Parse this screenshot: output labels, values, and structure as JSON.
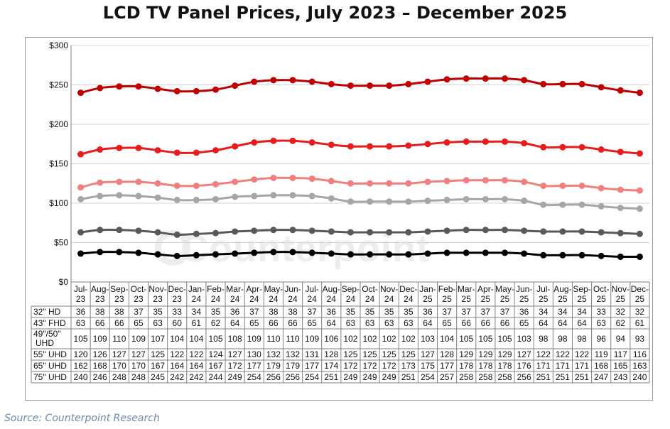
{
  "source_text": "Source: Counterpoint Research",
  "watermark_text": "Counterpoint",
  "chart_data": {
    "type": "line",
    "title": "LCD TV Panel Prices, July 2023 – December 2025",
    "xlabel": "",
    "ylabel": "",
    "ylim": [
      0,
      300
    ],
    "yticks": [
      "$0",
      "$50",
      "$100",
      "$150",
      "$200",
      "$250",
      "$300"
    ],
    "ytick_values": [
      0,
      50,
      100,
      150,
      200,
      250,
      300
    ],
    "grid": true,
    "categories": [
      [
        "Jul-",
        "23"
      ],
      [
        "Aug-",
        "23"
      ],
      [
        "Sep-",
        "23"
      ],
      [
        "Oct-",
        "23"
      ],
      [
        "Nov-",
        "23"
      ],
      [
        "Dec-",
        "23"
      ],
      [
        "Jan-",
        "24"
      ],
      [
        "Feb-",
        "24"
      ],
      [
        "Mar-",
        "24"
      ],
      [
        "Apr-",
        "24"
      ],
      [
        "May-",
        "24"
      ],
      [
        "Jun-",
        "24"
      ],
      [
        "Jul-",
        "24"
      ],
      [
        "Aug-",
        "24"
      ],
      [
        "Sep-",
        "24"
      ],
      [
        "Oct-",
        "24"
      ],
      [
        "Nov-",
        "24"
      ],
      [
        "Dec-",
        "24"
      ],
      [
        "Jan-",
        "25"
      ],
      [
        "Feb-",
        "25"
      ],
      [
        "Mar-",
        "25"
      ],
      [
        "Apr-",
        "25"
      ],
      [
        "May-",
        "25"
      ],
      [
        "Jun-",
        "25"
      ],
      [
        "Jul-",
        "25"
      ],
      [
        "Aug-",
        "25"
      ],
      [
        "Sep-",
        "25"
      ],
      [
        "Oct-",
        "25"
      ],
      [
        "Nov-",
        "25"
      ],
      [
        "Dec-",
        "25"
      ]
    ],
    "series": [
      {
        "name": [
          "32\" HD"
        ],
        "color": "#000000",
        "values": [
          36,
          38,
          38,
          37,
          35,
          33,
          34,
          35,
          36,
          37,
          38,
          38,
          37,
          36,
          35,
          35,
          35,
          35,
          36,
          37,
          37,
          37,
          37,
          36,
          34,
          34,
          34,
          33,
          32,
          32
        ]
      },
      {
        "name": [
          "43\" FHD"
        ],
        "color": "#595959",
        "values": [
          63,
          66,
          66,
          65,
          63,
          60,
          61,
          62,
          64,
          65,
          66,
          66,
          65,
          64,
          63,
          63,
          63,
          63,
          64,
          65,
          66,
          66,
          66,
          65,
          64,
          64,
          64,
          63,
          62,
          61
        ]
      },
      {
        "name": [
          "49\"/50\"",
          "UHD"
        ],
        "color": "#a6a6a6",
        "values": [
          105,
          109,
          110,
          109,
          107,
          104,
          104,
          105,
          108,
          109,
          110,
          110,
          109,
          106,
          102,
          102,
          102,
          102,
          103,
          104,
          105,
          105,
          105,
          103,
          98,
          98,
          98,
          96,
          94,
          93
        ]
      },
      {
        "name": [
          "55\" UHD"
        ],
        "color": "#f08080",
        "values": [
          120,
          126,
          127,
          127,
          125,
          122,
          122,
          124,
          127,
          130,
          132,
          132,
          131,
          128,
          125,
          125,
          125,
          125,
          127,
          128,
          129,
          129,
          129,
          127,
          122,
          122,
          122,
          119,
          117,
          116
        ]
      },
      {
        "name": [
          "65\" UHD"
        ],
        "color": "#e81c1c",
        "values": [
          162,
          168,
          170,
          170,
          167,
          164,
          164,
          167,
          172,
          177,
          179,
          179,
          177,
          174,
          172,
          172,
          172,
          173,
          175,
          177,
          178,
          178,
          178,
          176,
          171,
          171,
          171,
          168,
          165,
          163
        ]
      },
      {
        "name": [
          "75\" UHD"
        ],
        "color": "#c00000",
        "values": [
          240,
          246,
          248,
          248,
          245,
          242,
          242,
          244,
          249,
          254,
          256,
          256,
          254,
          251,
          249,
          249,
          249,
          251,
          254,
          257,
          258,
          258,
          258,
          256,
          251,
          251,
          251,
          247,
          243,
          240
        ]
      }
    ]
  }
}
